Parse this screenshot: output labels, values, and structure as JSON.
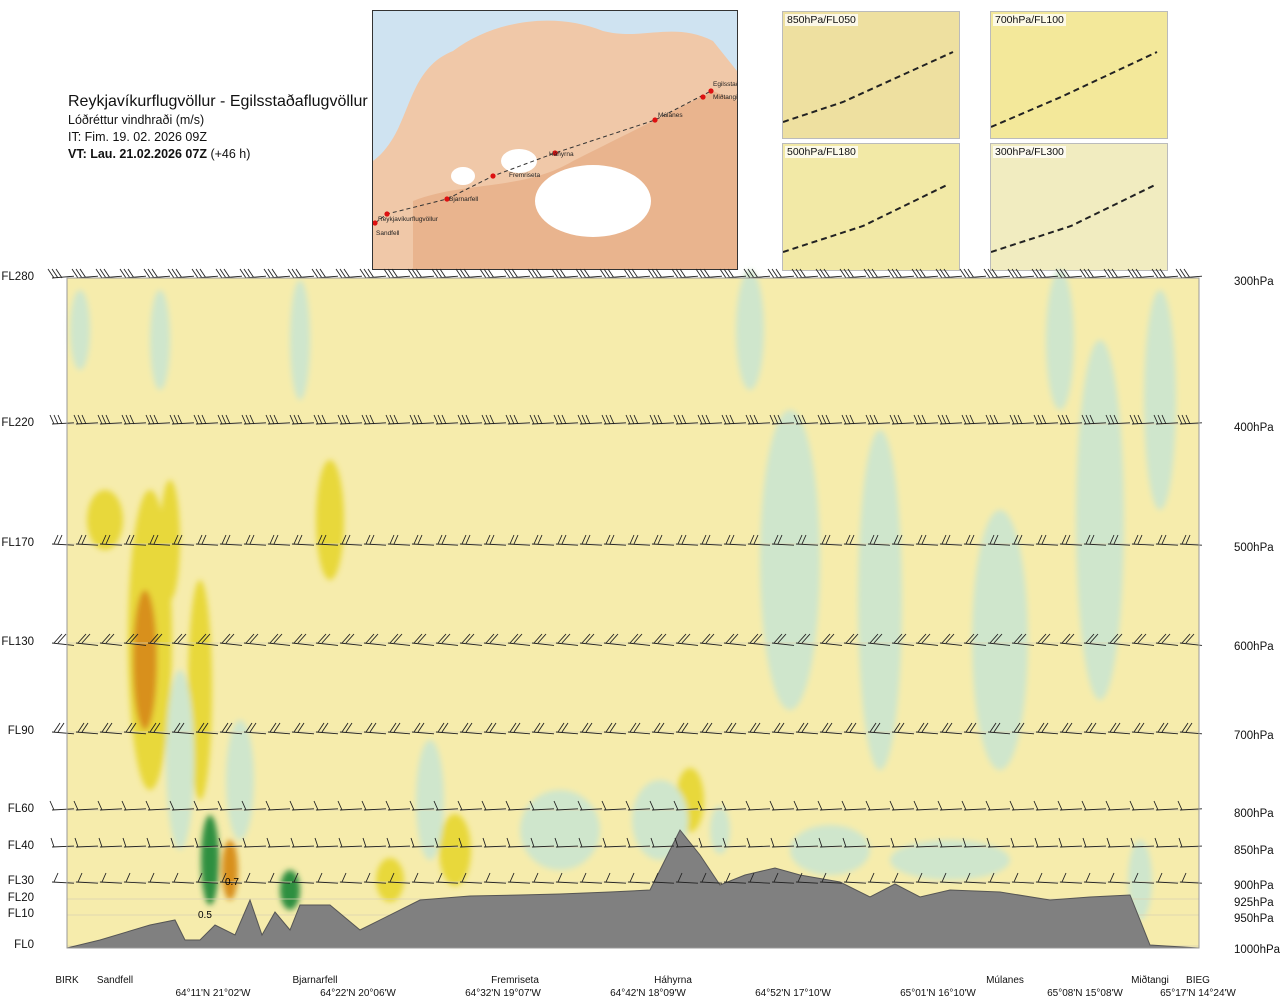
{
  "header": {
    "title": "Reykjavíkurflugvöllur - Egilsstaðaflugvöllur",
    "variable": "Lóðréttur vindhraði (m/s)",
    "it": "IT: Fim. 19. 02. 2026 09Z",
    "vt_bold": "VT: Lau. 21.02.2026 07Z",
    "vt_rest": "(+46 h)"
  },
  "map": {
    "points": [
      "Reykjavíkurflugvöllur",
      "Sandfell",
      "Bjarnarfell",
      "Fremriseta",
      "Háhyrna",
      "Múlanes",
      "Egilsstaðir",
      "Miðtangi"
    ],
    "route_color": "#333333",
    "point_color": "#dd1111"
  },
  "thumbnails": [
    "850hPa/FL050",
    "700hPa/FL100",
    "500hPa/FL180",
    "300hPa/FL300"
  ],
  "levels_left": [
    "FL280",
    "FL220",
    "FL170",
    "FL130",
    "FL90",
    "FL60",
    "FL40",
    "FL30",
    "FL20",
    "FL10",
    "FL0"
  ],
  "levels_right": [
    "300hPa",
    "400hPa",
    "500hPa",
    "600hPa",
    "700hPa",
    "800hPa",
    "850hPa",
    "900hPa",
    "925hPa",
    "950hPa",
    "1000hPa"
  ],
  "x_locations": [
    "BIRK",
    "Sandfell",
    "Bjarnarfell",
    "Fremriseta",
    "Háhyrna",
    "Múlanes",
    "Miðtangi",
    "BIEG"
  ],
  "x_coords": [
    "64°11'N 21°02'W",
    "64°22'N 20°06'W",
    "64°32'N 19°07'W",
    "64°42'N 18°09'W",
    "64°52'N 17°10'W",
    "65°01'N 16°10'W",
    "65°08'N 15°08'W",
    "65°17'N 14°24'W"
  ],
  "annotations": [
    "0.7",
    "0.5"
  ],
  "chart_data": {
    "type": "heatmap",
    "title": "Reykjavíkurflugvöllur - Egilsstaðaflugvöllur",
    "variable": "Lóðréttur vindhraði (m/s)",
    "y_levels_fl": [
      "FL280",
      "FL220",
      "FL170",
      "FL130",
      "FL90",
      "FL60",
      "FL40",
      "FL30",
      "FL20",
      "FL10",
      "FL0"
    ],
    "y_levels_hpa": [
      "300hPa",
      "400hPa",
      "500hPa",
      "600hPa",
      "700hPa",
      "800hPa",
      "850hPa",
      "900hPa",
      "925hPa",
      "950hPa",
      "1000hPa"
    ],
    "colors": {
      "updraft": "#e8d83a",
      "strong_updraft": "#d8901a",
      "downdraft": "#cfe6cc",
      "strong_downdraft": "#2f8f3f",
      "background": "#f6ecac",
      "terrain": "#808080"
    },
    "labeled_values": [
      0.7,
      0.5
    ]
  }
}
